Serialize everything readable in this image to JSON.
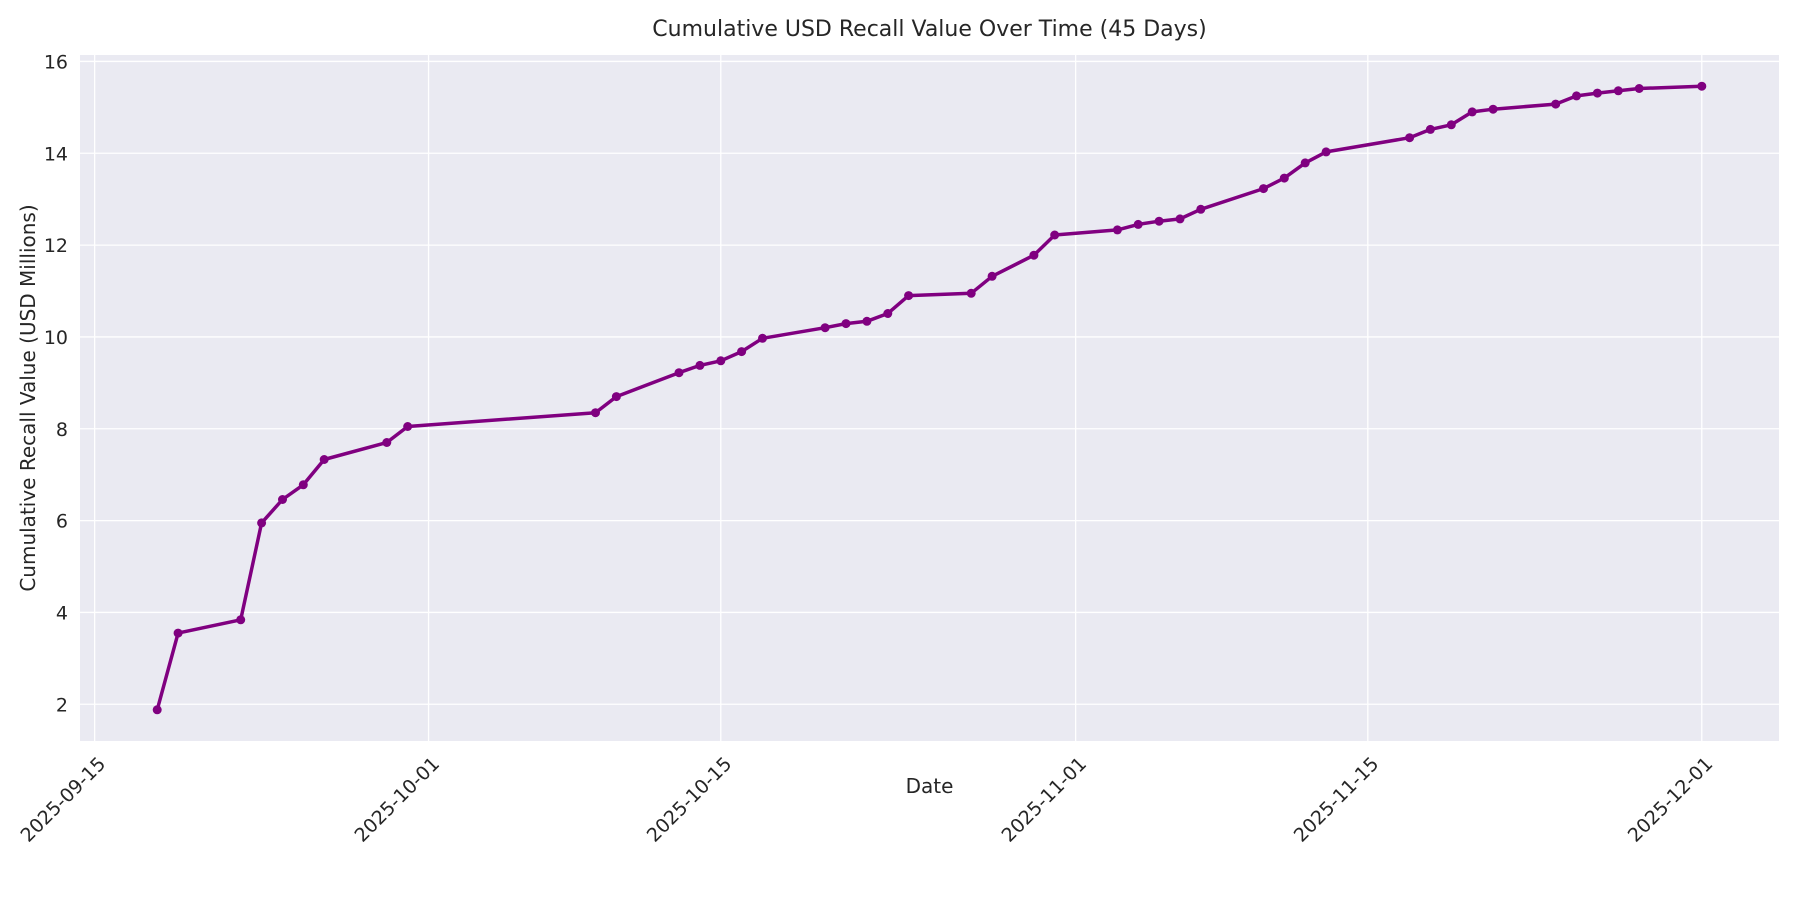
{
  "chart_data": {
    "type": "line",
    "title": "Cumulative USD Recall Value Over Time (45 Days)",
    "xlabel": "Date",
    "ylabel": "Cumulative Recall Value (USD Millions)",
    "legend": "none",
    "grid": "on",
    "style": {
      "line_color": "#800080",
      "marker": "circle",
      "marker_color": "#800080",
      "plot_background": "#eaeaf2",
      "grid_color": "#ffffff",
      "text_color": "#262626",
      "line_width": 3.5,
      "marker_radius": 4.5
    },
    "x_origin": "2025-09-15",
    "xlim_days": [
      -0.7,
      80.7
    ],
    "ylim": [
      1.2,
      16.14
    ],
    "x_ticks": [
      "2025-09-15",
      "2025-10-01",
      "2025-10-15",
      "2025-11-01",
      "2025-11-15",
      "2025-12-01"
    ],
    "y_ticks": [
      2,
      4,
      6,
      8,
      10,
      12,
      14,
      16
    ],
    "x": [
      "2025-09-18",
      "2025-09-19",
      "2025-09-22",
      "2025-09-23",
      "2025-09-24",
      "2025-09-25",
      "2025-09-26",
      "2025-09-29",
      "2025-09-30",
      "2025-10-09",
      "2025-10-10",
      "2025-10-13",
      "2025-10-14",
      "2025-10-15",
      "2025-10-16",
      "2025-10-17",
      "2025-10-20",
      "2025-10-21",
      "2025-10-22",
      "2025-10-23",
      "2025-10-24",
      "2025-10-27",
      "2025-10-28",
      "2025-10-30",
      "2025-10-31",
      "2025-11-03",
      "2025-11-04",
      "2025-11-05",
      "2025-11-06",
      "2025-11-07",
      "2025-11-10",
      "2025-11-11",
      "2025-11-12",
      "2025-11-13",
      "2025-11-17",
      "2025-11-18",
      "2025-11-19",
      "2025-11-20",
      "2025-11-21",
      "2025-11-24",
      "2025-11-25",
      "2025-11-26",
      "2025-11-27",
      "2025-11-28",
      "2025-12-01"
    ],
    "y": [
      1.88,
      3.55,
      3.84,
      5.95,
      6.46,
      6.78,
      7.33,
      7.7,
      8.05,
      8.35,
      8.7,
      9.22,
      9.38,
      9.48,
      9.68,
      9.97,
      10.2,
      10.29,
      10.34,
      10.51,
      10.9,
      10.95,
      11.32,
      11.78,
      12.22,
      12.33,
      12.45,
      12.52,
      12.57,
      12.78,
      13.23,
      13.46,
      13.79,
      14.03,
      14.34,
      14.52,
      14.62,
      14.9,
      14.96,
      15.07,
      15.25,
      15.31,
      15.36,
      15.41,
      15.46
    ]
  }
}
